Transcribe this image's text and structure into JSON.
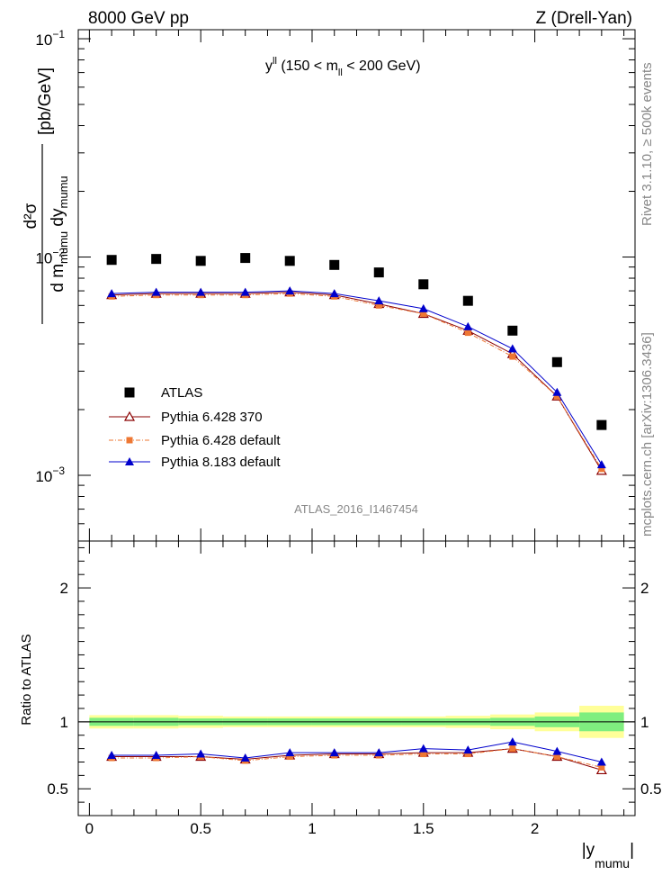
{
  "header": {
    "left": "8000 GeV pp",
    "right": "Z (Drell-Yan)"
  },
  "side_labels": {
    "rivet": "Rivet 3.1.10, ≥ 500k events",
    "source": "mcplots.cern.ch [arXiv:1306.3436]"
  },
  "chart_data": {
    "type": "scatter",
    "title": "y^ll (150 < m_ll < 200 GeV)",
    "title_parts": {
      "main": "y",
      "sup": "ll",
      "pre": " (150 < m",
      "sub": "ll",
      "post": " < 200 GeV)"
    },
    "ylabel_parts": {
      "numerator": "d²σ",
      "denominator_parts": [
        "d m",
        "mumu",
        " dy",
        "mumu"
      ],
      "unit": "[pb/GeV]"
    },
    "xlabel_parts": {
      "pre": "|y",
      "sub": "mumu",
      "post": "|"
    },
    "analysis_tag": "ATLAS_2016_I1467454",
    "yscale": "log",
    "ylim": [
      0.0005,
      0.11
    ],
    "xlim": [
      -0.05,
      2.45
    ],
    "x_ticks": [
      "0",
      "0.5",
      "1",
      "1.5",
      "2"
    ],
    "y_tick_labels": [
      {
        "value": 0.1,
        "base": "10",
        "exp": "−1"
      },
      {
        "value": 0.01,
        "base": "10",
        "exp": "−2"
      },
      {
        "value": 0.001,
        "base": "10",
        "exp": "−3"
      }
    ],
    "x": [
      0.1,
      0.3,
      0.5,
      0.7,
      0.9,
      1.1,
      1.3,
      1.5,
      1.7,
      1.9,
      2.1,
      2.3
    ],
    "series": [
      {
        "name": "ATLAS",
        "color": "#000000",
        "marker": "square",
        "values": [
          0.0097,
          0.0098,
          0.0096,
          0.0099,
          0.0096,
          0.0092,
          0.0085,
          0.0075,
          0.0063,
          0.0046,
          0.0033,
          0.0017
        ]
      },
      {
        "name": "Pythia 6.428 370",
        "color": "#8b0000",
        "marker": "open-triangle",
        "values": [
          0.0067,
          0.0068,
          0.0068,
          0.0068,
          0.0069,
          0.0067,
          0.0061,
          0.0055,
          0.0046,
          0.0036,
          0.0023,
          0.00105
        ]
      },
      {
        "name": "Pythia 6.428 default",
        "color": "#ee7733",
        "marker": "square",
        "values": [
          0.0066,
          0.0067,
          0.0067,
          0.0067,
          0.0068,
          0.0066,
          0.006,
          0.0055,
          0.0045,
          0.0035,
          0.0023,
          0.00107
        ]
      },
      {
        "name": "Pythia 8.183 default",
        "color": "#0000cc",
        "marker": "triangle",
        "values": [
          0.0068,
          0.0069,
          0.0069,
          0.0069,
          0.007,
          0.0068,
          0.0063,
          0.0058,
          0.0048,
          0.0038,
          0.0024,
          0.00112
        ]
      }
    ],
    "ratio": {
      "ylabel": "Ratio to ATLAS",
      "ylim": [
        0.3,
        2.35
      ],
      "y_ticks": [
        "0.5",
        "1",
        "2"
      ],
      "band_x_edges": [
        0.0,
        0.2,
        0.4,
        0.6,
        0.8,
        1.0,
        1.2,
        1.4,
        1.6,
        1.8,
        2.0,
        2.2,
        2.4
      ],
      "band_green_halfwidth": [
        0.03,
        0.03,
        0.025,
        0.025,
        0.025,
        0.025,
        0.025,
        0.025,
        0.025,
        0.03,
        0.04,
        0.07
      ],
      "band_yellow_halfwidth": [
        0.05,
        0.05,
        0.045,
        0.04,
        0.04,
        0.04,
        0.04,
        0.04,
        0.045,
        0.055,
        0.07,
        0.12
      ],
      "series": [
        {
          "name": "Pythia 6.428 370",
          "values": [
            0.74,
            0.74,
            0.74,
            0.72,
            0.75,
            0.76,
            0.76,
            0.77,
            0.77,
            0.8,
            0.74,
            0.64
          ]
        },
        {
          "name": "Pythia 6.428 default",
          "values": [
            0.73,
            0.73,
            0.74,
            0.71,
            0.74,
            0.75,
            0.75,
            0.76,
            0.76,
            0.8,
            0.74,
            0.66
          ]
        },
        {
          "name": "Pythia 8.183 default",
          "values": [
            0.75,
            0.75,
            0.76,
            0.73,
            0.77,
            0.77,
            0.77,
            0.8,
            0.79,
            0.85,
            0.78,
            0.7
          ]
        }
      ]
    }
  }
}
